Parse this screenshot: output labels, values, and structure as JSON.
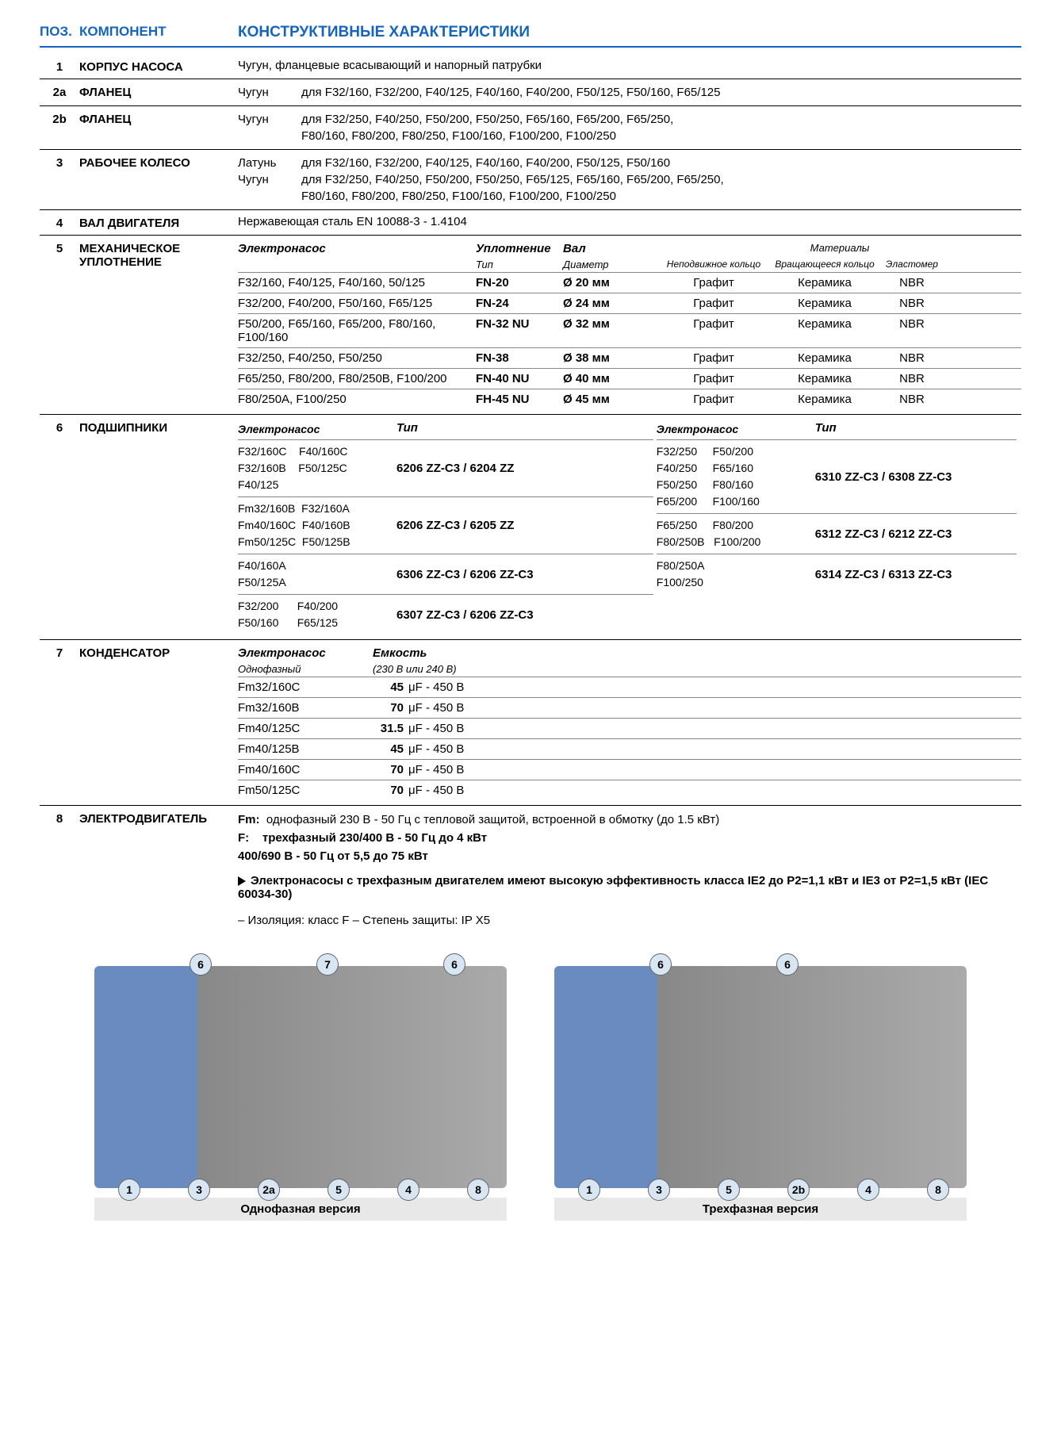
{
  "colors": {
    "brand": "#1565c0",
    "rule": "#000000",
    "subrule": "#888888",
    "calloutBg": "#d8e6f3",
    "diagramBarBg": "#e8e8e8"
  },
  "header": {
    "pos": "ПОЗ.",
    "component": "КОМПОНЕНТ",
    "characteristics": "КОНСТРУКТИВНЫЕ ХАРАКТЕРИСТИКИ"
  },
  "rows": {
    "r1": {
      "pos": "1",
      "comp": "КОРПУС НАСОСА",
      "text": "Чугун, фланцевые всасывающий и напорный патрубки"
    },
    "r2a": {
      "pos": "2a",
      "comp": "ФЛАНЕЦ",
      "mat": "Чугун",
      "detail": "для F32/160, F32/200, F40/125, F40/160, F40/200, F50/125, F50/160, F65/125"
    },
    "r2b": {
      "pos": "2b",
      "comp": "ФЛАНЕЦ",
      "mat": "Чугун",
      "detail1": "для F32/250, F40/250, F50/200, F50/250, F65/160, F65/200, F65/250,",
      "detail2": "F80/160, F80/200, F80/250, F100/160, F100/200, F100/250"
    },
    "r3": {
      "pos": "3",
      "comp": "РАБОЧЕЕ КОЛЕСО",
      "mat1": "Латунь",
      "detail1": "для F32/160, F32/200, F40/125, F40/160, F40/200, F50/125, F50/160",
      "mat2": "Чугун",
      "detail2": "для F32/250, F40/250, F50/200, F50/250, F65/125, F65/160, F65/200, F65/250,",
      "detail3": "F80/160, F80/200, F80/250, F100/160, F100/200, F100/250"
    },
    "r4": {
      "pos": "4",
      "comp": "ВАЛ ДВИГАТЕЛЯ",
      "text": "Нержавеющая сталь EN 10088-3 - 1.4104"
    },
    "r5": {
      "pos": "5",
      "comp": "МЕХАНИЧЕСКОЕ УПЛОТНЕНИЕ",
      "h_pump": "Электронасос",
      "h_seal": "Уплотнение",
      "h_shaft": "Вал",
      "h_mat": "Материалы",
      "sh_type": "Тип",
      "sh_diam": "Диаметр",
      "sh_m1": "Неподвижное кольцо",
      "sh_m2": "Вращающееся кольцо",
      "sh_m3": "Эластомер",
      "rows": [
        {
          "pump": "F32/160, F40/125, F40/160, 50/125",
          "type": "FN-20",
          "diam": "Ø 20 мм",
          "m1": "Графит",
          "m2": "Керамика",
          "m3": "NBR"
        },
        {
          "pump": "F32/200, F40/200, F50/160, F65/125",
          "type": "FN-24",
          "diam": "Ø 24 мм",
          "m1": "Графит",
          "m2": "Керамика",
          "m3": "NBR"
        },
        {
          "pump": "F50/200, F65/160, F65/200, F80/160, F100/160",
          "type": "FN-32 NU",
          "diam": "Ø 32 мм",
          "m1": "Графит",
          "m2": "Керамика",
          "m3": "NBR"
        },
        {
          "pump": "F32/250, F40/250, F50/250",
          "type": "FN-38",
          "diam": "Ø 38 мм",
          "m1": "Графит",
          "m2": "Керамика",
          "m3": "NBR"
        },
        {
          "pump": "F65/250, F80/200, F80/250B, F100/200",
          "type": "FN-40 NU",
          "diam": "Ø 40 мм",
          "m1": "Графит",
          "m2": "Керамика",
          "m3": "NBR"
        },
        {
          "pump": "F80/250A, F100/250",
          "type": "FH-45 NU",
          "diam": "Ø 45 мм",
          "m1": "Графит",
          "m2": "Керамика",
          "m3": "NBR"
        }
      ]
    },
    "r6": {
      "pos": "6",
      "comp": "ПОДШИПНИКИ",
      "h_pump": "Электронасос",
      "h_type": "Тип",
      "left": [
        {
          "models": "F32/160C    F40/160C\nF32/160B    F50/125C\nF40/125",
          "type": "6206 ZZ-C3 / 6204 ZZ"
        },
        {
          "models": "Fm32/160B  F32/160A\nFm40/160C  F40/160B\nFm50/125C  F50/125B",
          "type": "6206 ZZ-C3 / 6205 ZZ"
        },
        {
          "models": "F40/160A\nF50/125A",
          "type": "6306 ZZ-C3 / 6206 ZZ-C3"
        },
        {
          "models": "F32/200      F40/200\nF50/160      F65/125",
          "type": "6307 ZZ-C3 / 6206 ZZ-C3"
        }
      ],
      "right": [
        {
          "models": "F32/250     F50/200\nF40/250     F65/160\nF50/250     F80/160\nF65/200     F100/160",
          "type": "6310 ZZ-C3 / 6308 ZZ-C3"
        },
        {
          "models": "F65/250     F80/200\nF80/250B   F100/200",
          "type": "6312 ZZ-C3 / 6212 ZZ-C3"
        },
        {
          "models": "F80/250A\nF100/250",
          "type": "6314 ZZ-C3 / 6313 ZZ-C3"
        }
      ]
    },
    "r7": {
      "pos": "7",
      "comp": "КОНДЕНСАТОР",
      "h_pump": "Электронасос",
      "h_cap": "Емкость",
      "sh_phase": "Однофазный",
      "sh_volt": "(230 В или 240 В)",
      "rows": [
        {
          "m": "Fm32/160C",
          "v": "45",
          "u": "μF - 450 В"
        },
        {
          "m": "Fm32/160B",
          "v": "70",
          "u": "μF - 450 В"
        },
        {
          "m": "Fm40/125C",
          "v": "31.5",
          "u": "μF - 450 В"
        },
        {
          "m": "Fm40/125B",
          "v": "45",
          "u": "μF - 450 В"
        },
        {
          "m": "Fm40/160C",
          "v": "70",
          "u": "μF - 450 В"
        },
        {
          "m": "Fm50/125C",
          "v": "70",
          "u": "μF - 450 В"
        }
      ]
    },
    "r8": {
      "pos": "8",
      "comp": "ЭЛЕКТРОДВИГАТЕЛЬ",
      "l1a": "Fm:",
      "l1b": "однофазный 230 В - 50 Гц с тепловой защитой, встроенной в обмотку (до 1.5 кВт)",
      "l2a": "F:",
      "l2b": "трехфазный 230/400 В - 50 Гц до 4 кВт",
      "l3": "400/690 В - 50 Гц от 5,5 до 75 кВт",
      "l4": "Электронасосы с трехфазным двигателем имеют высокую эффективность класса IE2 до P2=1,1 кВт и IE3 от  P2=1,5 кВт  (IEС 60034-30)",
      "l5": "– Изоляция: класс F     – Степень защиты: IP X5"
    }
  },
  "diagrams": {
    "left": {
      "label": "Однофазная версия",
      "callouts_top": [
        "6",
        "7",
        "6"
      ],
      "callouts_bottom": [
        "1",
        "3",
        "2a",
        "5",
        "4",
        "8"
      ]
    },
    "right": {
      "label": "Трехфазная версия",
      "callouts_top": [
        "6",
        "6"
      ],
      "callouts_bottom": [
        "1",
        "3",
        "5",
        "2b",
        "4",
        "8"
      ]
    }
  }
}
